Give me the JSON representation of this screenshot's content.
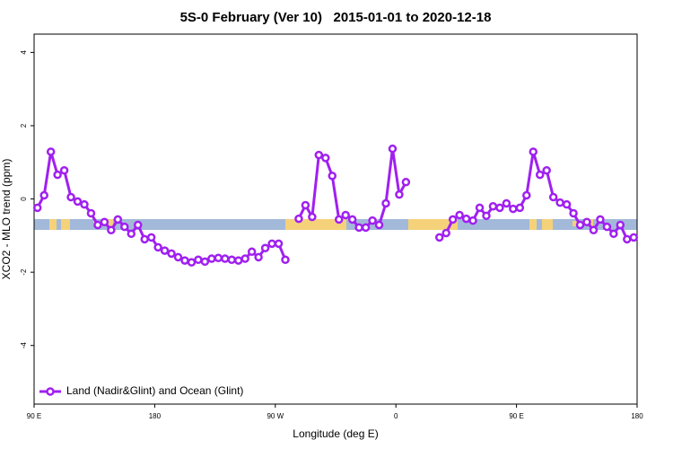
{
  "chart_data": {
    "type": "line",
    "title": "5S-0 February (Ver 10)   2015-01-01 to 2020-12-18",
    "x_label": "Longitude (deg E)",
    "y_label": "XCO2 - MLO trend (ppm)",
    "xlim": [
      90,
      540
    ],
    "ylim": [
      -5.6,
      4.5
    ],
    "xticks": [
      {
        "value": 90,
        "label": "90 E"
      },
      180,
      {
        "value": 270,
        "label": "90 W"
      },
      {
        "value": 360,
        "label": "0"
      },
      {
        "value": 450,
        "label": "90 E"
      },
      {
        "value": 540,
        "label": "180"
      }
    ],
    "yticks": [
      -4,
      -2,
      0,
      2,
      4
    ],
    "legend": "bottom-left",
    "x": [
      92.5,
      97.5,
      102.5,
      107.5,
      112.5,
      117.5,
      122.5,
      127.5,
      132.5,
      137.5,
      142.5,
      147.5,
      152.5,
      157.5,
      162.5,
      167.5,
      172.5,
      177.5,
      182.5,
      187.5,
      192.5,
      197.5,
      202.5,
      207.5,
      212.5,
      217.5,
      222.5,
      227.5,
      232.5,
      237.5,
      242.5,
      247.5,
      252.5,
      257.5,
      262.5,
      267.5,
      272.5,
      277.5,
      282.5,
      287.5,
      292.5,
      297.5,
      302.5,
      307.5,
      312.5,
      317.5,
      322.5,
      327.5,
      332.5,
      337.5,
      342.5,
      347.5,
      352.5,
      357.5,
      362.5,
      367.5,
      372.5,
      377.5,
      382.5,
      387.5,
      392.5,
      397.5,
      402.5,
      407.5,
      412.5,
      417.5,
      422.5,
      427.5,
      432.5,
      437.5,
      442.5,
      447.5,
      452.5,
      457.5,
      462.5,
      467.5,
      472.5,
      477.5,
      482.5,
      487.5,
      492.5,
      497.5,
      502.5,
      507.5,
      512.5,
      517.5,
      522.5,
      527.5,
      532.5,
      537.5
    ],
    "series": [
      {
        "name": "Land (Nadir&Glint) and Ocean (Glint)",
        "color": "#a020f0",
        "values": [
          -0.24,
          0.1,
          1.29,
          0.66,
          0.78,
          0.05,
          -0.07,
          -0.15,
          -0.39,
          -0.71,
          -0.63,
          -0.85,
          -0.56,
          -0.76,
          -0.95,
          -0.71,
          -1.1,
          -1.05,
          -1.32,
          -1.41,
          -1.49,
          -1.59,
          -1.68,
          -1.73,
          -1.66,
          -1.71,
          -1.63,
          -1.61,
          -1.63,
          -1.66,
          -1.68,
          -1.63,
          -1.44,
          -1.59,
          -1.34,
          -1.22,
          -1.22,
          -1.66,
          null,
          -0.54,
          -0.17,
          -0.49,
          1.2,
          1.12,
          0.63,
          -0.56,
          -0.44,
          -0.56,
          -0.78,
          -0.78,
          -0.59,
          -0.71,
          -0.12,
          1.37,
          0.12,
          0.46,
          null,
          null,
          null,
          null,
          -1.05,
          -0.93,
          -0.56,
          -0.44,
          -0.54,
          -0.59,
          -0.24,
          -0.46,
          -0.2,
          -0.24,
          -0.12,
          -0.27,
          -0.24,
          0.1,
          1.29,
          0.66,
          0.78,
          0.05,
          -0.1,
          -0.15,
          -0.39,
          -0.71,
          -0.63,
          -0.85,
          -0.56,
          -0.76,
          -0.95,
          -0.71,
          -1.1,
          -1.05
        ]
      }
    ]
  }
}
